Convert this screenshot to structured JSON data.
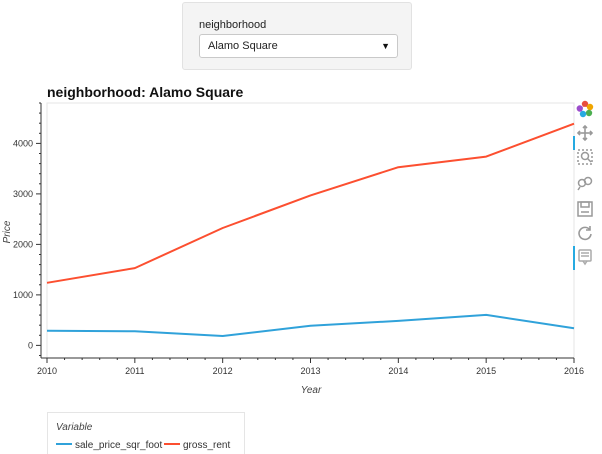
{
  "widget": {
    "label": "neighborhood",
    "selected": "Alamo Square"
  },
  "chart_title": "neighborhood: Alamo Square",
  "chart_data": {
    "type": "line",
    "title": "neighborhood: Alamo Square",
    "xlabel": "Year",
    "ylabel": "Price",
    "x": [
      2010,
      2011,
      2012,
      2013,
      2014,
      2015,
      2016
    ],
    "xlim": [
      2010,
      2016
    ],
    "ylim": [
      -250,
      4800
    ],
    "yticks": [
      0,
      1000,
      2000,
      3000,
      4000
    ],
    "xticks": [
      2010,
      2011,
      2012,
      2013,
      2014,
      2015,
      2016
    ],
    "series": [
      {
        "name": "sale_price_sqr_foot",
        "color": "#30a2da",
        "values": [
          291,
          278,
          186,
          389,
          484,
          604,
          340
        ]
      },
      {
        "name": "gross_rent",
        "color": "#fc4f30",
        "values": [
          1239,
          1530,
          2324,
          2971,
          3528,
          3739,
          4390
        ]
      }
    ],
    "grid": false,
    "legend_title": "Variable",
    "legend_position": "bottom"
  },
  "toolbar": {
    "icons": [
      "bokeh-logo-icon",
      "pan-icon",
      "box-zoom-icon",
      "wheel-zoom-icon",
      "save-icon",
      "reset-icon",
      "hover-icon"
    ]
  }
}
